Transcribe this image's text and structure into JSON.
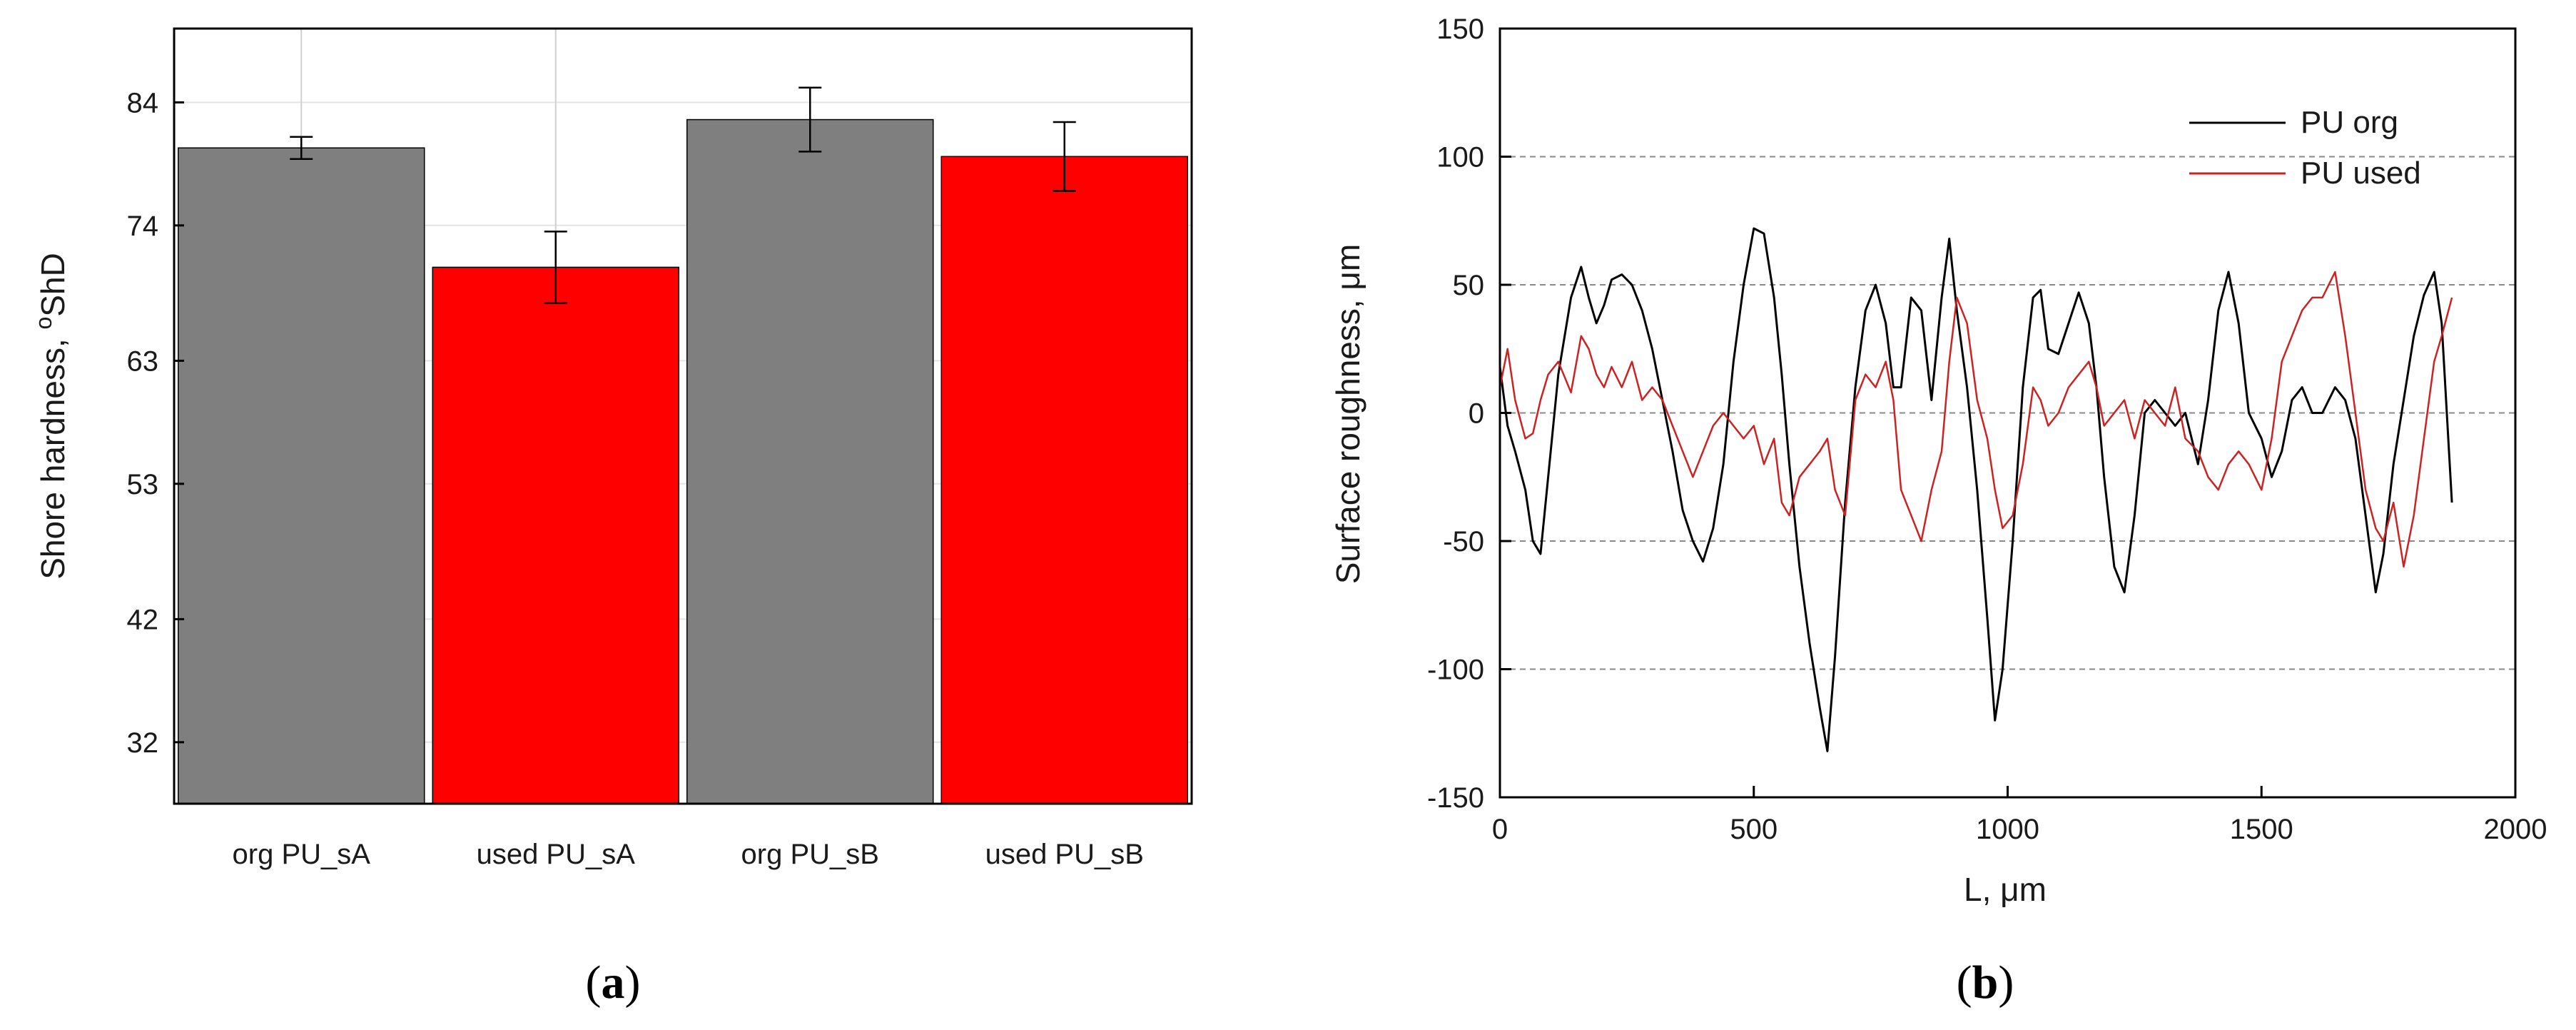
{
  "panels": {
    "a_label": "(a)",
    "b_label": "(b)"
  },
  "chart_data": [
    {
      "type": "bar",
      "ylabel": "Shore hardness, °ShD",
      "ylabel_main": "Shore hardness, ",
      "ylabel_sup": "o",
      "ylabel_unit": "ShD",
      "categories": [
        "org PU_sA",
        "used PU_sA",
        "org PU_sB",
        "used PU_sB"
      ],
      "values": [
        80.3,
        70.6,
        82.6,
        79.6
      ],
      "errors": [
        0.9,
        2.9,
        2.6,
        2.8
      ],
      "bar_colors": [
        "#7f7f7f",
        "#ff0000",
        "#7f7f7f",
        "#ff0000"
      ],
      "yticks": [
        32,
        42,
        53,
        63,
        74,
        84
      ],
      "ylim": [
        27,
        90
      ],
      "grid": true
    },
    {
      "type": "line",
      "xlabel": "L, μm",
      "ylabel": "Surface roughness, μm",
      "xlim": [
        0,
        2000
      ],
      "ylim": [
        -150,
        150
      ],
      "xticks": [
        0,
        500,
        1000,
        1500,
        2000
      ],
      "yticks": [
        -150,
        -100,
        -50,
        0,
        50,
        100,
        150
      ],
      "grid": true,
      "legend_position": "top-right",
      "series": [
        {
          "name": "PU org",
          "color": "#000000",
          "x": [
            0,
            15,
            30,
            50,
            65,
            80,
            95,
            115,
            140,
            160,
            175,
            190,
            205,
            220,
            240,
            260,
            280,
            300,
            320,
            340,
            360,
            380,
            400,
            420,
            440,
            460,
            480,
            500,
            520,
            540,
            555,
            570,
            590,
            610,
            630,
            645,
            660,
            680,
            700,
            720,
            740,
            760,
            775,
            790,
            810,
            830,
            850,
            870,
            885,
            900,
            920,
            940,
            960,
            975,
            990,
            1010,
            1030,
            1050,
            1065,
            1080,
            1100,
            1120,
            1140,
            1160,
            1175,
            1190,
            1210,
            1230,
            1250,
            1270,
            1290,
            1310,
            1330,
            1350,
            1375,
            1395,
            1415,
            1435,
            1455,
            1475,
            1500,
            1520,
            1540,
            1560,
            1580,
            1600,
            1620,
            1645,
            1665,
            1685,
            1705,
            1725,
            1740,
            1760,
            1780,
            1800,
            1820,
            1840,
            1855,
            1875
          ],
          "values": [
            18,
            -5,
            -15,
            -30,
            -50,
            -55,
            -25,
            15,
            45,
            57,
            45,
            35,
            42,
            52,
            54,
            50,
            40,
            25,
            5,
            -15,
            -38,
            -50,
            -58,
            -45,
            -20,
            20,
            50,
            72,
            70,
            45,
            15,
            -20,
            -60,
            -90,
            -115,
            -132,
            -95,
            -35,
            10,
            40,
            50,
            35,
            10,
            10,
            45,
            40,
            5,
            45,
            68,
            40,
            10,
            -30,
            -80,
            -120,
            -100,
            -50,
            10,
            45,
            48,
            25,
            23,
            35,
            47,
            35,
            10,
            -25,
            -60,
            -70,
            -40,
            0,
            5,
            0,
            -5,
            0,
            -20,
            5,
            40,
            55,
            35,
            0,
            -10,
            -25,
            -15,
            5,
            10,
            0,
            0,
            10,
            5,
            -10,
            -40,
            -70,
            -55,
            -20,
            5,
            30,
            46,
            55,
            35,
            -35
          ]
        },
        {
          "name": "PU used",
          "color": "#cc2222",
          "x": [
            0,
            15,
            30,
            50,
            65,
            80,
            95,
            115,
            140,
            160,
            175,
            190,
            205,
            220,
            240,
            260,
            280,
            300,
            320,
            340,
            360,
            380,
            400,
            420,
            440,
            460,
            480,
            500,
            520,
            540,
            555,
            570,
            590,
            610,
            630,
            645,
            660,
            680,
            700,
            720,
            740,
            760,
            775,
            790,
            810,
            830,
            850,
            870,
            885,
            900,
            920,
            940,
            960,
            975,
            990,
            1010,
            1030,
            1050,
            1065,
            1080,
            1100,
            1120,
            1140,
            1160,
            1175,
            1190,
            1210,
            1230,
            1250,
            1270,
            1290,
            1310,
            1330,
            1350,
            1375,
            1395,
            1415,
            1435,
            1455,
            1475,
            1500,
            1520,
            1540,
            1560,
            1580,
            1600,
            1620,
            1645,
            1665,
            1685,
            1705,
            1725,
            1740,
            1760,
            1780,
            1800,
            1820,
            1840,
            1855,
            1875
          ],
          "values": [
            10,
            25,
            5,
            -10,
            -8,
            5,
            15,
            20,
            8,
            30,
            25,
            15,
            10,
            18,
            10,
            20,
            5,
            10,
            5,
            -5,
            -15,
            -25,
            -15,
            -5,
            0,
            -5,
            -10,
            -5,
            -20,
            -10,
            -35,
            -40,
            -25,
            -20,
            -15,
            -10,
            -30,
            -40,
            5,
            15,
            10,
            20,
            5,
            -30,
            -40,
            -50,
            -30,
            -15,
            20,
            45,
            35,
            5,
            -10,
            -30,
            -45,
            -40,
            -20,
            10,
            5,
            -5,
            0,
            10,
            15,
            20,
            10,
            -5,
            0,
            5,
            -10,
            5,
            0,
            -5,
            10,
            -10,
            -15,
            -25,
            -30,
            -20,
            -15,
            -20,
            -30,
            -10,
            20,
            30,
            40,
            45,
            45,
            55,
            30,
            0,
            -30,
            -45,
            -50,
            -35,
            -60,
            -40,
            -10,
            20,
            30,
            45
          ]
        }
      ]
    }
  ]
}
